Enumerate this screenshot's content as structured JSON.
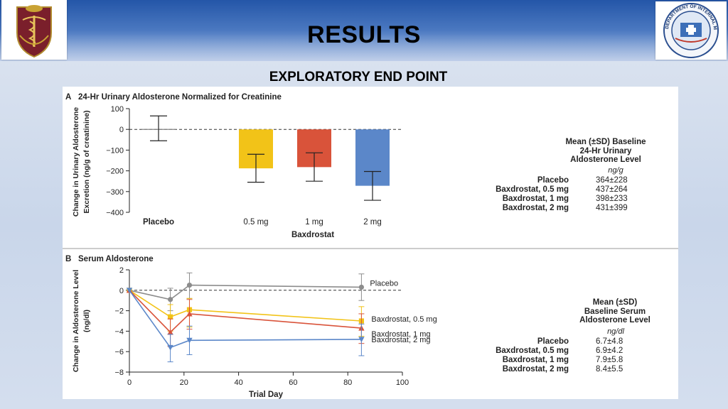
{
  "header": {
    "title": "RESULTS",
    "subtitle": "EXPLORATORY END POINT",
    "logo_left_icon": "army-medical-crest-icon",
    "logo_right_icon": "department-of-internal-medicine-seal-icon",
    "logo_right_text": "DEPARTMENT OF INTERNAL MEDICINE"
  },
  "chart_data": [
    {
      "type": "bar",
      "panel_letter": "A",
      "title": "24-Hr Urinary Aldosterone Normalized for Creatinine",
      "ylabel_line1": "Change in Urinary Aldosterone",
      "ylabel_line2": "Excretion (ng/g of creatinine)",
      "xlabel": "Baxdrostat",
      "ylim": [
        -400,
        100
      ],
      "yticks": [
        100,
        0,
        -100,
        -200,
        -300,
        -400
      ],
      "ytick_labels": [
        "100",
        "0",
        "−100",
        "−200",
        "−300",
        "−400"
      ],
      "categories": [
        "Placebo",
        "0.5 mg",
        "1 mg",
        "2 mg"
      ],
      "values": [
        2,
        -188,
        -182,
        -272
      ],
      "error_low": [
        -55,
        -255,
        -250,
        -342
      ],
      "error_high": [
        65,
        -120,
        -113,
        -203
      ],
      "colors": [
        "#7f7f7f",
        "#f2c318",
        "#d9533a",
        "#5b87c9"
      ],
      "reference_line": 0,
      "baseline_table": {
        "heading": [
          "Mean (±SD) Baseline",
          "24-Hr Urinary",
          "Aldosterone Level"
        ],
        "unit": "ng/g",
        "rows": [
          {
            "label": "Placebo",
            "value": "364±228"
          },
          {
            "label": "Baxdrostat, 0.5 mg",
            "value": "437±264"
          },
          {
            "label": "Baxdrostat, 1 mg",
            "value": "398±233"
          },
          {
            "label": "Baxdrostat, 2 mg",
            "value": "431±399"
          }
        ]
      }
    },
    {
      "type": "line",
      "panel_letter": "B",
      "title": "Serum Aldosterone",
      "ylabel_line1": "Change in Aldosterone Level",
      "ylabel_line2": "(ng/dl)",
      "xlabel": "Trial Day",
      "xlim": [
        0,
        100
      ],
      "ylim": [
        -8,
        2
      ],
      "xticks": [
        0,
        20,
        40,
        60,
        80,
        100
      ],
      "yticks": [
        2,
        0,
        -2,
        -4,
        -6,
        -8
      ],
      "ytick_labels": [
        "2",
        "0",
        "−2",
        "−4",
        "−6",
        "−8"
      ],
      "reference_line": 0,
      "series": [
        {
          "name": "Placebo",
          "color": "#8c8c8c",
          "marker": "circle",
          "x": [
            0,
            15,
            22,
            85
          ],
          "y": [
            0,
            -0.9,
            0.5,
            0.3
          ],
          "err_low": [
            0,
            -2.0,
            -0.8,
            -1.0
          ],
          "err_high": [
            0,
            0.2,
            1.7,
            1.6
          ]
        },
        {
          "name": "Baxdrostat, 0.5 mg",
          "color": "#f2c318",
          "marker": "square",
          "x": [
            0,
            15,
            22,
            85
          ],
          "y": [
            0,
            -2.6,
            -1.9,
            -3.0
          ],
          "err_low": [
            0,
            -4.0,
            -3.6,
            -4.5
          ],
          "err_high": [
            0,
            -1.4,
            -0.8,
            -1.6
          ]
        },
        {
          "name": "Baxdrostat, 1 mg",
          "color": "#d9533a",
          "marker": "triangle",
          "x": [
            0,
            15,
            22,
            85
          ],
          "y": [
            0,
            -4.1,
            -2.3,
            -3.7
          ],
          "err_low": [
            0,
            -5.5,
            -3.8,
            -5.2
          ],
          "err_high": [
            0,
            -2.8,
            -0.9,
            -2.3
          ]
        },
        {
          "name": "Baxdrostat, 2 mg",
          "color": "#5b87c9",
          "marker": "triangle-down",
          "x": [
            0,
            15,
            22,
            85
          ],
          "y": [
            0,
            -5.6,
            -4.9,
            -4.8
          ],
          "err_low": [
            0,
            -7.0,
            -6.3,
            -6.4
          ],
          "err_high": [
            0,
            -4.3,
            -3.5,
            -3.3
          ]
        }
      ],
      "baseline_table": {
        "heading": [
          "Mean (±SD)",
          "Baseline Serum",
          "Aldosterone  Level"
        ],
        "unit": "ng/dl",
        "rows": [
          {
            "label": "Placebo",
            "value": "6.7±4.8"
          },
          {
            "label": "Baxdrostat, 0.5 mg",
            "value": "6.9±4.2"
          },
          {
            "label": "Baxdrostat, 1 mg",
            "value": "7.9±5.8"
          },
          {
            "label": "Baxdrostat, 2 mg",
            "value": "8.4±5.5"
          }
        ]
      }
    }
  ]
}
